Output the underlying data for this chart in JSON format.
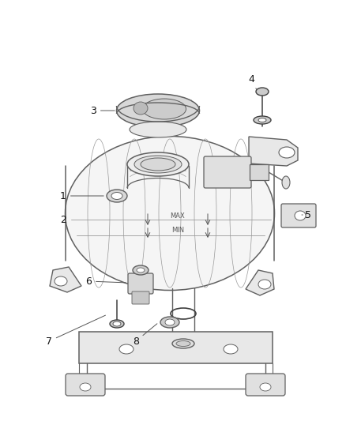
{
  "bg_color": "#ffffff",
  "lc": "#606060",
  "llc": "#999999",
  "dc": "#404040",
  "fig_width": 4.38,
  "fig_height": 5.33,
  "dpi": 100
}
